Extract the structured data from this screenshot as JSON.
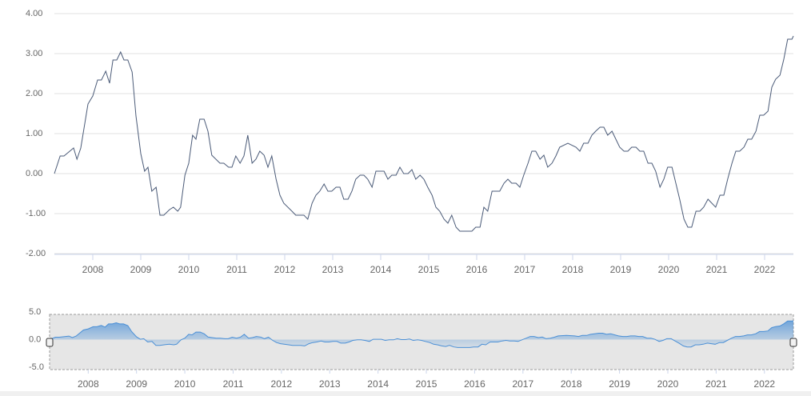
{
  "chart_data": {
    "type": "line",
    "x": [
      2007.2,
      2007.32,
      2007.4,
      2007.6,
      2007.67,
      2007.75,
      2007.9,
      2008.0,
      2008.1,
      2008.18,
      2008.27,
      2008.35,
      2008.42,
      2008.5,
      2008.58,
      2008.65,
      2008.73,
      2008.82,
      2008.9,
      2009.0,
      2009.08,
      2009.15,
      2009.23,
      2009.32,
      2009.4,
      2009.48,
      2009.6,
      2009.68,
      2009.77,
      2009.83,
      2009.92,
      2010.0,
      2010.08,
      2010.15,
      2010.23,
      2010.32,
      2010.4,
      2010.48,
      2010.65,
      2010.73,
      2010.83,
      2010.9,
      2010.98,
      2011.07,
      2011.15,
      2011.23,
      2011.32,
      2011.4,
      2011.48,
      2011.57,
      2011.65,
      2011.73,
      2011.82,
      2011.9,
      2011.98,
      2012.15,
      2012.23,
      2012.4,
      2012.48,
      2012.57,
      2012.65,
      2012.73,
      2012.82,
      2012.9,
      2012.98,
      2013.07,
      2013.15,
      2013.23,
      2013.32,
      2013.4,
      2013.48,
      2013.57,
      2013.65,
      2013.73,
      2013.82,
      2013.9,
      2014.07,
      2014.15,
      2014.23,
      2014.32,
      2014.4,
      2014.48,
      2014.57,
      2014.65,
      2014.73,
      2014.82,
      2014.9,
      2014.98,
      2015.07,
      2015.15,
      2015.23,
      2015.32,
      2015.4,
      2015.48,
      2015.57,
      2015.65,
      2015.9,
      2015.98,
      2016.07,
      2016.15,
      2016.23,
      2016.32,
      2016.48,
      2016.57,
      2016.65,
      2016.73,
      2016.82,
      2016.9,
      2016.98,
      2017.07,
      2017.15,
      2017.23,
      2017.32,
      2017.4,
      2017.48,
      2017.57,
      2017.65,
      2017.73,
      2017.9,
      2018.07,
      2018.15,
      2018.23,
      2018.32,
      2018.4,
      2018.48,
      2018.57,
      2018.65,
      2018.73,
      2018.82,
      2018.9,
      2018.98,
      2019.07,
      2019.15,
      2019.23,
      2019.32,
      2019.4,
      2019.48,
      2019.57,
      2019.65,
      2019.73,
      2019.82,
      2019.9,
      2019.98,
      2020.07,
      2020.15,
      2020.23,
      2020.32,
      2020.4,
      2020.48,
      2020.57,
      2020.65,
      2020.73,
      2020.82,
      2020.9,
      2020.98,
      2021.07,
      2021.15,
      2021.23,
      2021.32,
      2021.4,
      2021.48,
      2021.57,
      2021.65,
      2021.73,
      2021.82,
      2021.9,
      2021.98,
      2022.07,
      2022.15,
      2022.23,
      2022.32,
      2022.4,
      2022.48,
      2022.57,
      2022.6
    ],
    "values": [
      0.0,
      0.44,
      0.44,
      0.64,
      0.36,
      0.64,
      1.74,
      1.94,
      2.34,
      2.34,
      2.56,
      2.26,
      2.84,
      2.84,
      3.04,
      2.84,
      2.84,
      2.54,
      1.44,
      0.5,
      0.06,
      0.16,
      -0.44,
      -0.34,
      -1.04,
      -1.04,
      -0.9,
      -0.84,
      -0.94,
      -0.84,
      -0.04,
      0.26,
      0.96,
      0.86,
      1.36,
      1.36,
      1.06,
      0.46,
      0.26,
      0.26,
      0.16,
      0.16,
      0.44,
      0.26,
      0.44,
      0.96,
      0.26,
      0.36,
      0.56,
      0.46,
      0.16,
      0.44,
      -0.14,
      -0.54,
      -0.74,
      -0.94,
      -1.04,
      -1.04,
      -1.14,
      -0.74,
      -0.54,
      -0.44,
      -0.26,
      -0.44,
      -0.44,
      -0.34,
      -0.34,
      -0.64,
      -0.64,
      -0.44,
      -0.14,
      -0.04,
      -0.04,
      -0.14,
      -0.34,
      0.06,
      0.06,
      -0.14,
      -0.04,
      -0.04,
      0.16,
      0.0,
      0.0,
      0.1,
      -0.14,
      -0.04,
      -0.14,
      -0.34,
      -0.54,
      -0.84,
      -0.94,
      -1.14,
      -1.24,
      -1.04,
      -1.34,
      -1.44,
      -1.44,
      -1.34,
      -1.34,
      -0.84,
      -0.94,
      -0.44,
      -0.44,
      -0.24,
      -0.14,
      -0.24,
      -0.24,
      -0.34,
      -0.04,
      0.26,
      0.56,
      0.56,
      0.36,
      0.46,
      0.16,
      0.26,
      0.44,
      0.66,
      0.76,
      0.66,
      0.56,
      0.76,
      0.76,
      0.96,
      1.06,
      1.16,
      1.16,
      0.96,
      1.06,
      0.86,
      0.66,
      0.56,
      0.56,
      0.66,
      0.66,
      0.56,
      0.56,
      0.26,
      0.26,
      0.06,
      -0.34,
      -0.14,
      0.16,
      0.16,
      -0.24,
      -0.64,
      -1.14,
      -1.34,
      -1.34,
      -0.94,
      -0.94,
      -0.84,
      -0.64,
      -0.74,
      -0.84,
      -0.54,
      -0.54,
      -0.14,
      0.26,
      0.56,
      0.56,
      0.66,
      0.86,
      0.86,
      1.06,
      1.46,
      1.46,
      1.56,
      2.16,
      2.36,
      2.46,
      2.86,
      3.36,
      3.36,
      3.44
    ],
    "color": "#4b5b78",
    "xlim": [
      2007.2,
      2022.6
    ],
    "xticks": [
      2008,
      2009,
      2010,
      2011,
      2012,
      2013,
      2014,
      2015,
      2016,
      2017,
      2018,
      2019,
      2020,
      2021,
      2022
    ],
    "ylim": [
      -2,
      4
    ],
    "yticks": [
      {
        "value": 4,
        "label": "4.00"
      },
      {
        "value": 3,
        "label": "3.00"
      },
      {
        "value": 2,
        "label": "2.00"
      },
      {
        "value": 1,
        "label": "1.00"
      },
      {
        "value": 0,
        "label": "0.00"
      },
      {
        "value": -1,
        "label": "-1.00"
      },
      {
        "value": -2,
        "label": "-2.00"
      }
    ],
    "grid": true,
    "navigator": {
      "color": "#4a8fd6",
      "ylim": [
        -5,
        5
      ],
      "yticks": [
        {
          "value": 5,
          "label": "5.0"
        },
        {
          "value": 0,
          "label": "0.0"
        },
        {
          "value": -5,
          "label": "-5.0"
        }
      ]
    }
  }
}
